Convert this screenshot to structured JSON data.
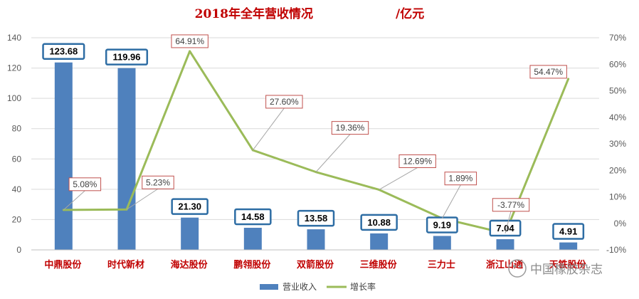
{
  "chart_data": {
    "type": "bar",
    "title": "2018年全年营收情况",
    "unit": "/亿元",
    "categories": [
      "中鼎股份",
      "时代新材",
      "海达股份",
      "鹏翎股份",
      "双箭股份",
      "三维股份",
      "三力士",
      "浙江山通",
      "天铁股份"
    ],
    "series": [
      {
        "name": "营业收入",
        "type": "bar",
        "axis": "left",
        "color": "#4f81bd",
        "values": [
          123.68,
          119.96,
          21.3,
          14.58,
          13.58,
          10.88,
          9.19,
          7.04,
          4.91
        ],
        "labels": [
          "123.68",
          "119.96",
          "21.30",
          "14.58",
          "13.58",
          "10.88",
          "9.19",
          "7.04",
          "4.91"
        ]
      },
      {
        "name": "增长率",
        "type": "line",
        "axis": "right",
        "color": "#9bbb59",
        "values": [
          5.08,
          5.23,
          64.91,
          27.6,
          19.36,
          12.69,
          1.89,
          -3.77,
          54.47
        ],
        "labels": [
          "5.08%",
          "5.23%",
          "64.91%",
          "27.60%",
          "19.36%",
          "12.69%",
          "1.89%",
          "-3.77%",
          "54.47%"
        ]
      }
    ],
    "y_left": {
      "ylim": [
        0,
        140
      ],
      "ticks": [
        "0",
        "20",
        "40",
        "60",
        "80",
        "100",
        "120",
        "140"
      ]
    },
    "y_right": {
      "ylim": [
        -10,
        70
      ],
      "ticks": [
        "-10%",
        "0%",
        "10%",
        "20%",
        "30%",
        "40%",
        "50%",
        "60%",
        "70%"
      ]
    },
    "grid": true,
    "legend_position": "bottom"
  },
  "watermark": "中国橡胶杂志"
}
